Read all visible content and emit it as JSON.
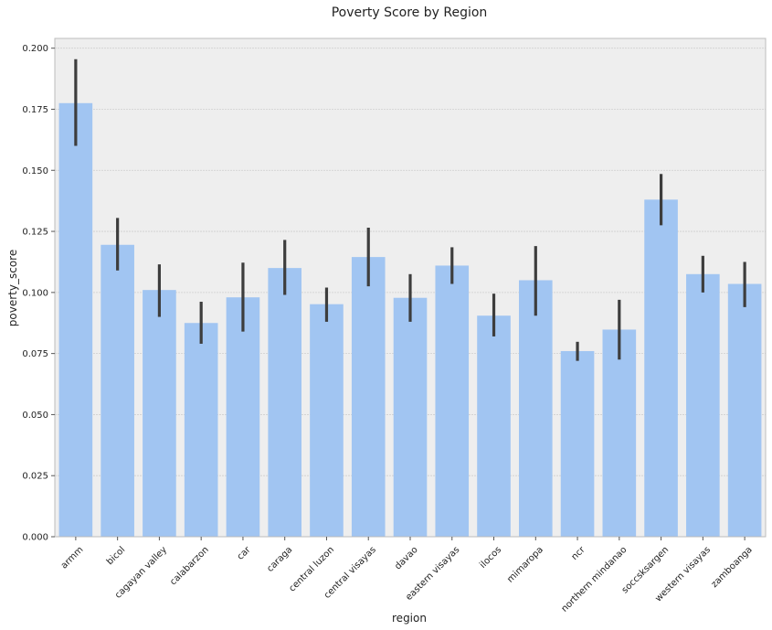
{
  "chart_data": {
    "type": "bar",
    "title": "Poverty Score by Region",
    "xlabel": "region",
    "ylabel": "poverty_score",
    "ylim": [
      0,
      0.204
    ],
    "yticks": [
      "0.000",
      "0.025",
      "0.050",
      "0.075",
      "0.100",
      "0.125",
      "0.150",
      "0.175",
      "0.200"
    ],
    "categories": [
      "armm",
      "bicol",
      "cagayan valley",
      "calabarzon",
      "car",
      "caraga",
      "central luzon",
      "central visayas",
      "davao",
      "eastern visayas",
      "ilocos",
      "mimaropa",
      "ncr",
      "northern mindanao",
      "soccsksargen",
      "western visayas",
      "zamboanga"
    ],
    "values": [
      0.1775,
      0.1195,
      0.101,
      0.0875,
      0.098,
      0.11,
      0.0952,
      0.1145,
      0.0978,
      0.111,
      0.0905,
      0.105,
      0.076,
      0.0848,
      0.138,
      0.1075,
      0.1035
    ],
    "error_low": [
      0.16,
      0.109,
      0.09,
      0.079,
      0.084,
      0.099,
      0.088,
      0.1025,
      0.088,
      0.1035,
      0.082,
      0.0905,
      0.072,
      0.0725,
      0.1275,
      0.1,
      0.094
    ],
    "error_high": [
      0.1955,
      0.1305,
      0.1115,
      0.0962,
      0.1122,
      0.1215,
      0.102,
      0.1265,
      0.1075,
      0.1185,
      0.0995,
      0.119,
      0.0798,
      0.097,
      0.1485,
      0.115,
      0.1125
    ],
    "grid": true,
    "colors": {
      "bar": "#a1c5f2",
      "error_bar": "#3d3d3d",
      "plot_background": "#eeeeee",
      "grid": "#cfcfcf",
      "frame": "#bcbcbc"
    }
  }
}
